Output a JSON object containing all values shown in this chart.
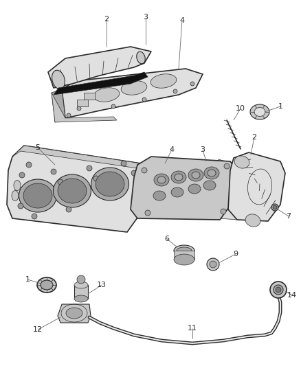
{
  "bg_color": "#ffffff",
  "line_color": "#2a2a2a",
  "label_color": "#2a2a2a",
  "fig_width": 4.38,
  "fig_height": 5.33,
  "dpi": 100,
  "lw": 0.8,
  "lw_thin": 0.5,
  "lw_thick": 1.2,
  "gray_light": "#e0e0e0",
  "gray_mid": "#c8c8c8",
  "gray_dark": "#aaaaaa",
  "gray_fill": "#d4d4d4"
}
